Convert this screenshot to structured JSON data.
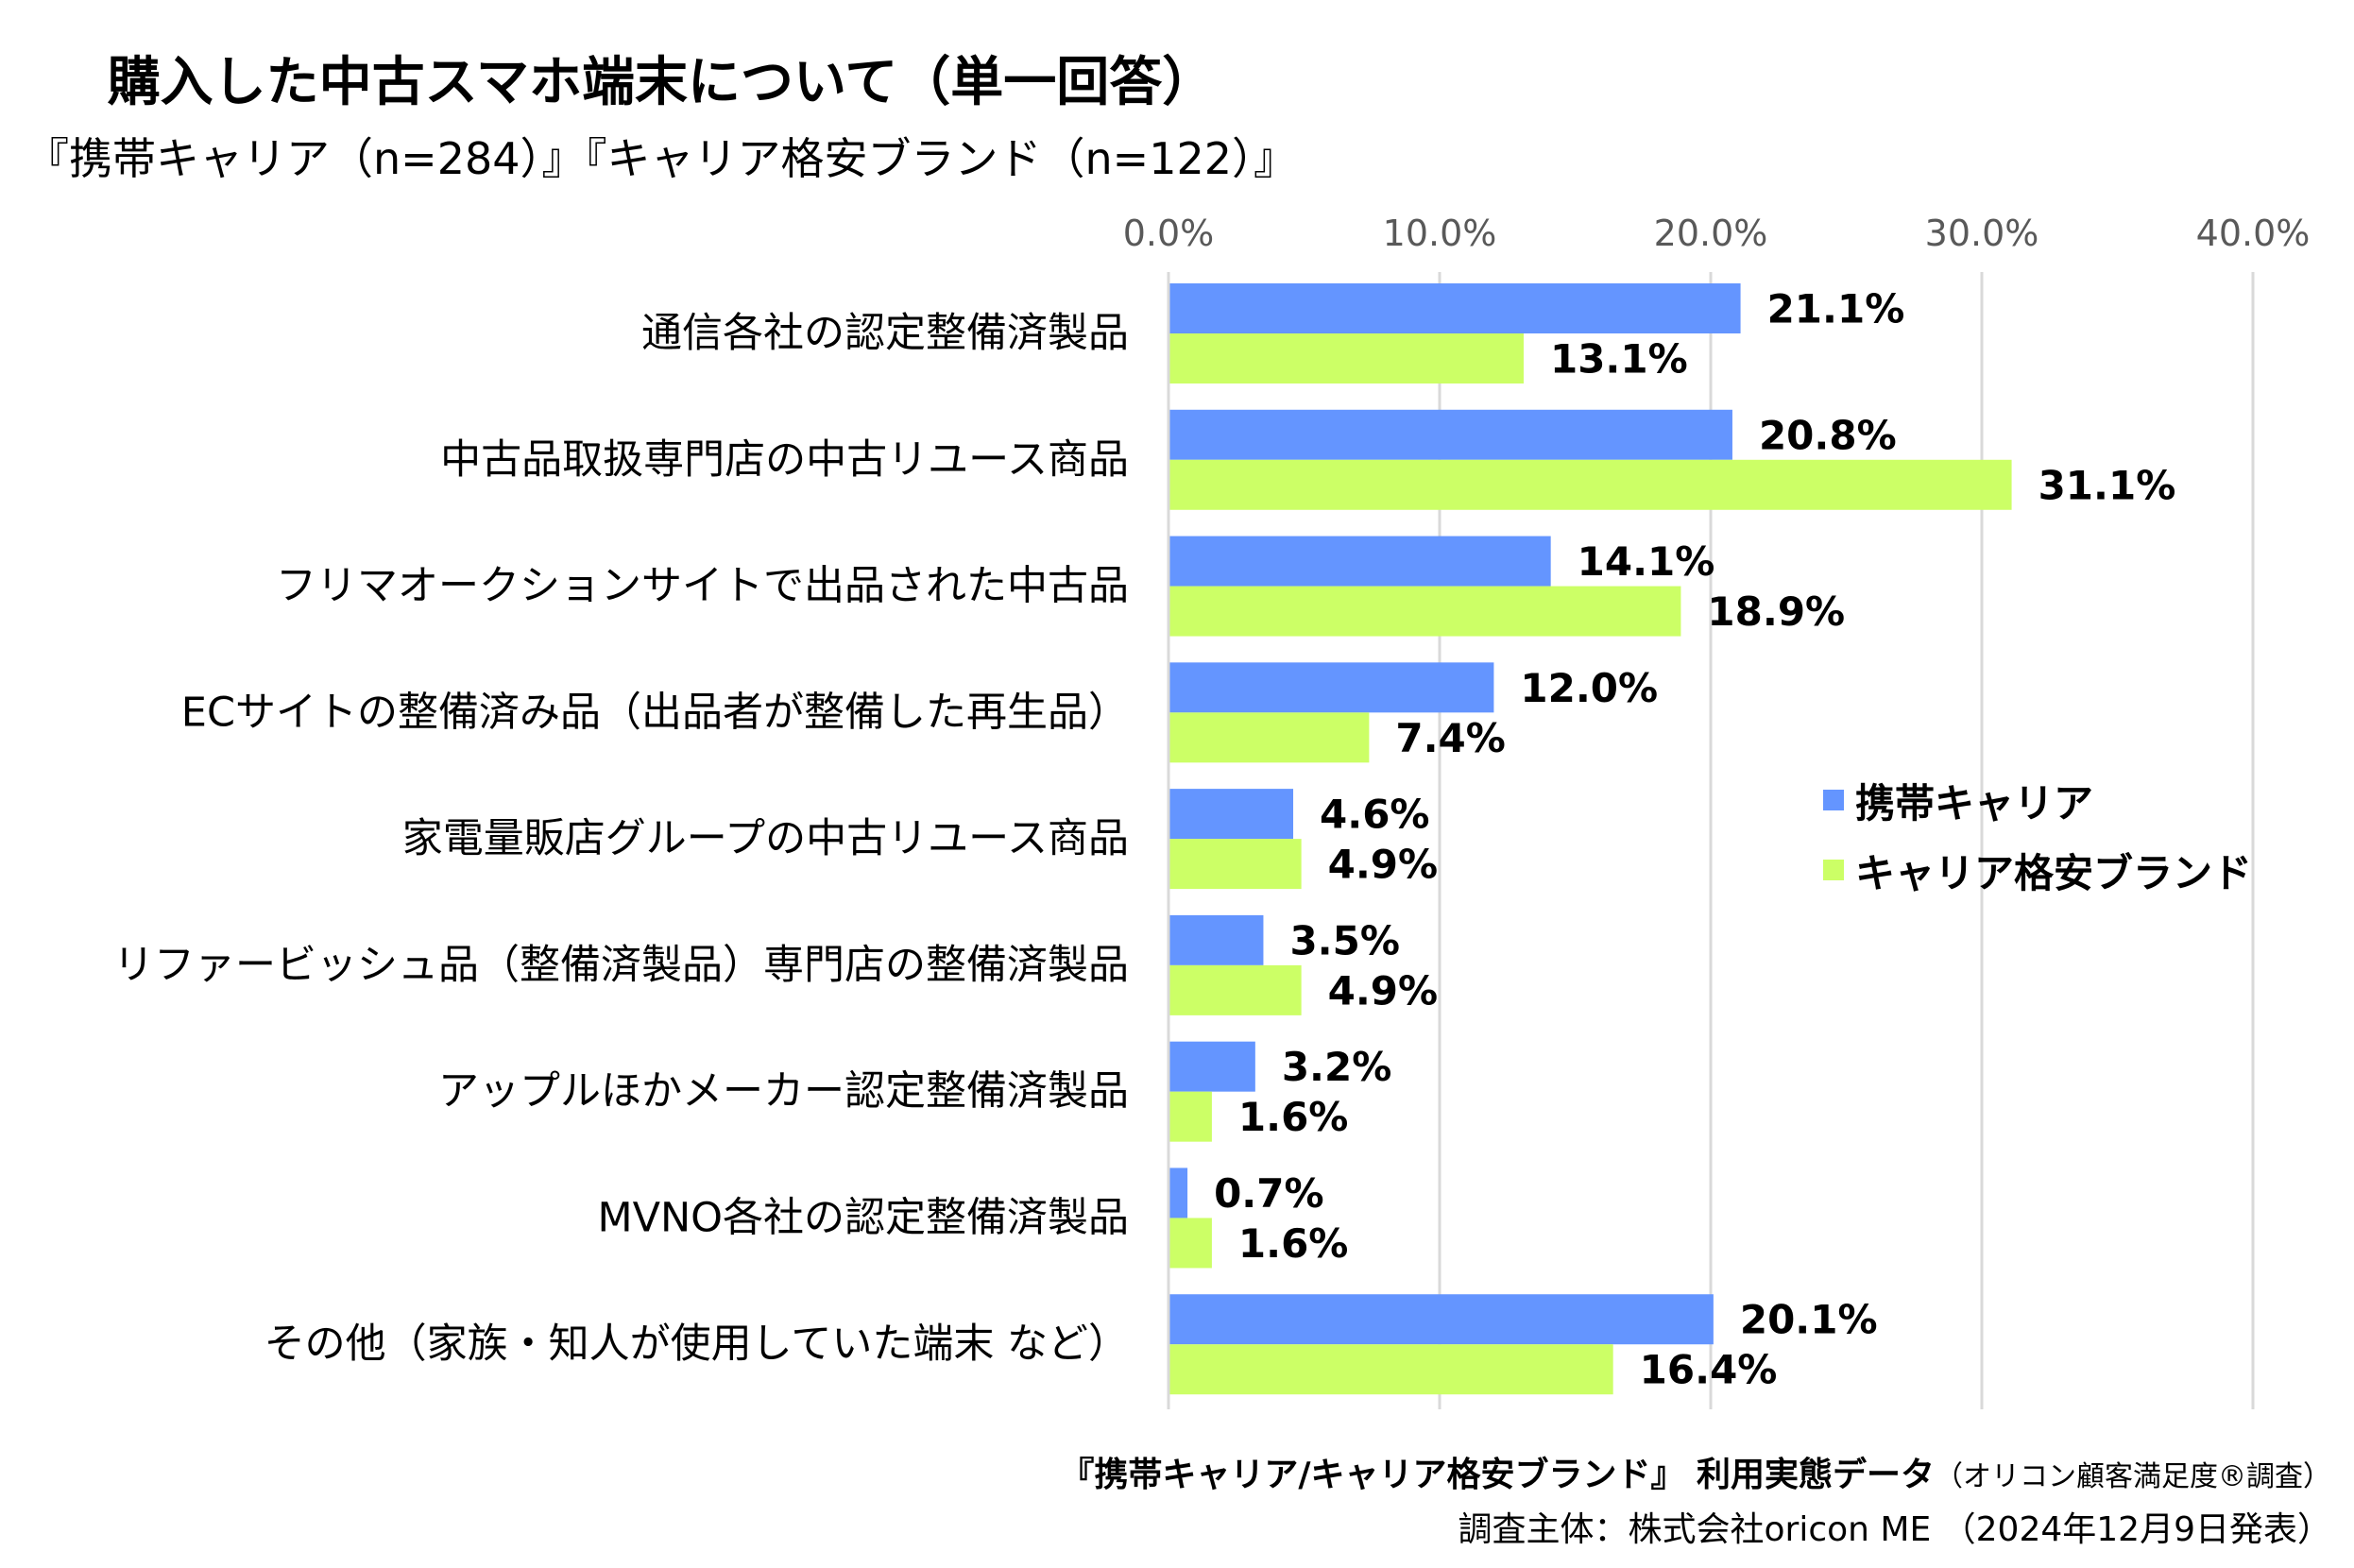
{
  "chart_data": {
    "type": "bar",
    "orientation": "horizontal",
    "title": "購入した中古スマホ端末について（単一回答）",
    "subtitle": "『携帯キャリア（n=284）』『キャリア格安ブランド（n=122）』",
    "categories": [
      "通信各社の認定整備済製品",
      "中古品取扱専門店の中古リユース商品",
      "フリマオークションサイトで出品された中古品",
      "ECサイトの整備済み品（出品者が整備した再生品）",
      "家電量販店グループの中古リユース商品",
      "リファービッシュ品（整備済製品）専門店の整備済製品",
      "アップルほかメーカー認定整備済製品",
      "MVNO各社の認定整備済製品",
      "その他（家族・知人が使用していた端末 など）"
    ],
    "series": [
      {
        "name": "携帯キャリア",
        "color": "#6495FF",
        "values": [
          21.1,
          20.8,
          14.1,
          12.0,
          4.6,
          3.5,
          3.2,
          0.7,
          20.1
        ]
      },
      {
        "name": "キャリア格安ブランド",
        "color": "#CCFF66",
        "values": [
          13.1,
          31.1,
          18.9,
          7.4,
          4.9,
          4.9,
          1.6,
          1.6,
          16.4
        ]
      }
    ],
    "xlim": [
      0,
      40
    ],
    "xticks": [
      "0.0%",
      "10.0%",
      "20.0%",
      "30.0%",
      "40.0%"
    ],
    "xtick_values": [
      0,
      10,
      20,
      30,
      40
    ],
    "grid": true,
    "legend_position": "right",
    "value_suffix": "%"
  },
  "footer": {
    "line1_bold": "『携帯キャリア/キャリア格安ブランド』 利用実態データ",
    "line1_small": "（オリコン顧客満足度®調査）",
    "line2": "調査主体：株式会社oricon ME （2024年12月9日発表）"
  }
}
